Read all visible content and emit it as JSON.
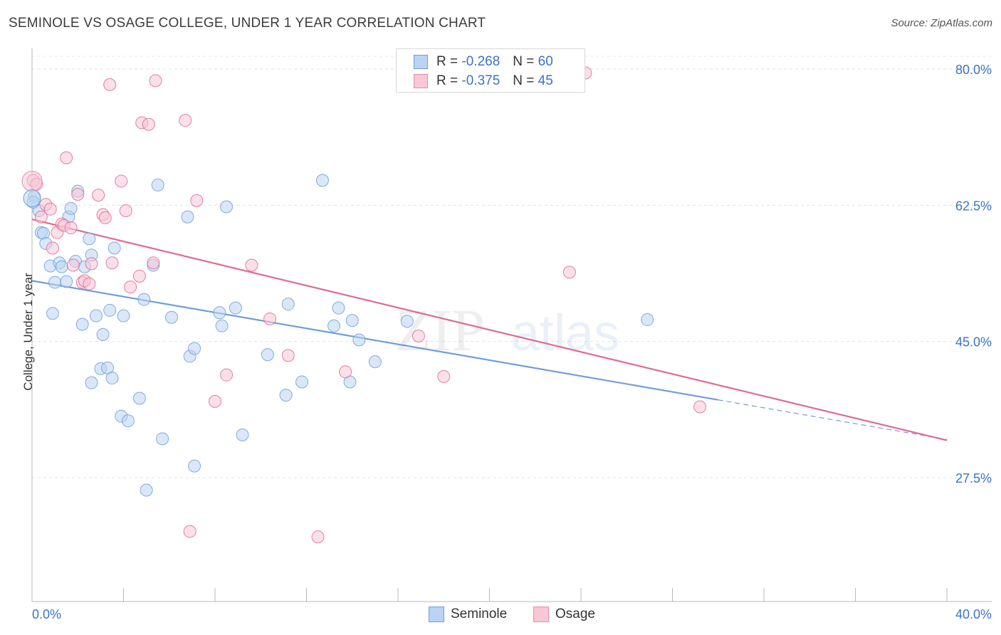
{
  "title": "SEMINOLE VS OSAGE COLLEGE, UNDER 1 YEAR CORRELATION CHART",
  "source": "Source: ZipAtlas.com",
  "watermark": {
    "zip": "ZIP",
    "atlas": "atlas"
  },
  "legend": {
    "rows": [
      {
        "r_label": "R =",
        "r_value": "-0.268",
        "n_label": "N =",
        "n_value": "60",
        "fill": "#b9d3f3",
        "stroke": "#6f9fdb"
      },
      {
        "r_label": "R =",
        "r_value": "-0.375",
        "n_label": "N =",
        "n_value": "45",
        "fill": "#f8c6d5",
        "stroke": "#e58fab"
      }
    ]
  },
  "chart_data": {
    "type": "scatter",
    "xlabel": "",
    "ylabel": "College, Under 1 year",
    "xlim": [
      0,
      40
    ],
    "ylim": [
      11,
      83
    ],
    "x_tick_labels": [
      "0.0%",
      "40.0%"
    ],
    "y_ticks": [
      27.5,
      45.0,
      62.5,
      80.0
    ],
    "y_tick_labels": [
      "27.5%",
      "45.0%",
      "62.5%",
      "80.0%"
    ],
    "grid": true,
    "legend_position": "top-center",
    "series": [
      {
        "name": "Seminole",
        "color": "#6f9fdb",
        "fill": "#b9d3f3",
        "trend": {
          "x": [
            0,
            30,
            40
          ],
          "y": [
            52.8,
            37.5,
            32.4
          ],
          "solid_until": 30
        },
        "points": [
          [
            0.1,
            63.6
          ],
          [
            0.3,
            61.8
          ],
          [
            0.4,
            59.0
          ],
          [
            0.5,
            58.9
          ],
          [
            0.6,
            57.6
          ],
          [
            0.8,
            54.7
          ],
          [
            0.9,
            48.6
          ],
          [
            1.0,
            52.6
          ],
          [
            1.2,
            55.1
          ],
          [
            1.3,
            54.6
          ],
          [
            1.5,
            52.7
          ],
          [
            1.6,
            61.0
          ],
          [
            1.7,
            62.1
          ],
          [
            1.9,
            55.3
          ],
          [
            2.0,
            64.3
          ],
          [
            2.2,
            47.2
          ],
          [
            2.3,
            54.6
          ],
          [
            2.5,
            58.2
          ],
          [
            2.6,
            56.1
          ],
          [
            2.6,
            39.7
          ],
          [
            2.8,
            48.3
          ],
          [
            3.0,
            41.5
          ],
          [
            3.1,
            45.9
          ],
          [
            3.3,
            41.6
          ],
          [
            3.4,
            49.0
          ],
          [
            3.5,
            40.3
          ],
          [
            3.6,
            57.0
          ],
          [
            3.9,
            35.4
          ],
          [
            4.0,
            48.3
          ],
          [
            4.2,
            34.8
          ],
          [
            4.7,
            37.7
          ],
          [
            4.9,
            50.4
          ],
          [
            5.0,
            25.9
          ],
          [
            5.3,
            54.8
          ],
          [
            5.5,
            65.1
          ],
          [
            5.7,
            32.5
          ],
          [
            6.1,
            48.1
          ],
          [
            6.8,
            61.0
          ],
          [
            6.9,
            43.1
          ],
          [
            7.1,
            44.1
          ],
          [
            7.1,
            29.0
          ],
          [
            8.2,
            48.7
          ],
          [
            8.3,
            47.0
          ],
          [
            8.5,
            62.3
          ],
          [
            8.9,
            49.3
          ],
          [
            9.2,
            33.0
          ],
          [
            10.3,
            43.3
          ],
          [
            11.1,
            38.1
          ],
          [
            11.2,
            49.8
          ],
          [
            11.8,
            39.8
          ],
          [
            12.7,
            65.7
          ],
          [
            13.2,
            47.0
          ],
          [
            13.4,
            49.3
          ],
          [
            13.9,
            39.8
          ],
          [
            14.0,
            47.7
          ],
          [
            14.3,
            45.2
          ],
          [
            15.0,
            42.4
          ],
          [
            16.4,
            47.6
          ],
          [
            26.9,
            47.8
          ],
          [
            0.05,
            62.9
          ]
        ]
      },
      {
        "name": "Osage",
        "color": "#e06a93",
        "fill": "#f8c6d5",
        "trend": {
          "x": [
            0,
            40
          ],
          "y": [
            60.7,
            32.3
          ],
          "solid_until": 40
        },
        "points": [
          [
            0.05,
            65.7
          ],
          [
            0.2,
            65.2
          ],
          [
            0.4,
            61.0
          ],
          [
            0.6,
            62.6
          ],
          [
            0.8,
            62.0
          ],
          [
            0.9,
            57.0
          ],
          [
            1.1,
            59.0
          ],
          [
            1.3,
            60.1
          ],
          [
            1.4,
            59.9
          ],
          [
            1.5,
            68.6
          ],
          [
            1.7,
            59.6
          ],
          [
            1.8,
            54.8
          ],
          [
            2.0,
            63.9
          ],
          [
            2.2,
            52.6
          ],
          [
            2.3,
            52.8
          ],
          [
            2.5,
            52.4
          ],
          [
            2.6,
            55.0
          ],
          [
            2.9,
            63.8
          ],
          [
            3.1,
            61.3
          ],
          [
            3.2,
            60.9
          ],
          [
            3.4,
            78.0
          ],
          [
            3.5,
            55.1
          ],
          [
            3.9,
            65.6
          ],
          [
            4.1,
            61.8
          ],
          [
            4.3,
            52.0
          ],
          [
            4.7,
            53.4
          ],
          [
            4.8,
            73.1
          ],
          [
            5.1,
            72.9
          ],
          [
            5.3,
            55.1
          ],
          [
            5.4,
            78.5
          ],
          [
            6.7,
            73.4
          ],
          [
            6.9,
            20.6
          ],
          [
            7.2,
            63.1
          ],
          [
            8.0,
            37.3
          ],
          [
            8.5,
            40.7
          ],
          [
            9.6,
            54.8
          ],
          [
            10.4,
            47.9
          ],
          [
            11.2,
            43.2
          ],
          [
            12.5,
            19.9
          ],
          [
            13.7,
            41.1
          ],
          [
            16.9,
            45.7
          ],
          [
            18.0,
            40.5
          ],
          [
            23.5,
            53.9
          ],
          [
            29.2,
            36.6
          ],
          [
            24.2,
            79.5
          ]
        ]
      }
    ]
  }
}
